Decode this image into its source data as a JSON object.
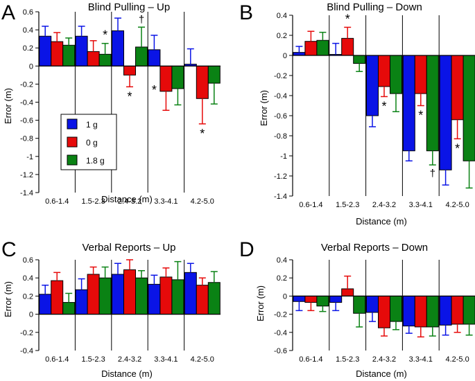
{
  "figure": {
    "colors": {
      "1 g": "#0a14e6",
      "0 g": "#e60a0a",
      "1.8 g": "#0a8214"
    },
    "legend": [
      {
        "name": "1 g",
        "color": "#0a14e6"
      },
      {
        "name": "0 g",
        "color": "#e60a0a"
      },
      {
        "name": "1.8 g",
        "color": "#0a8214"
      }
    ]
  },
  "chart_data": [
    {
      "type": "bar",
      "panel_letter": "A",
      "title": "Blind Pulling – Up",
      "xlabel": "Distance (m)",
      "ylabel": "Error (m)",
      "categories": [
        "0.6-1.4",
        "1.5-2.3",
        "2.4-3.2",
        "3.3-4.1",
        "4.2-5.0"
      ],
      "ylim": [
        -1.4,
        0.6
      ],
      "yticks": [
        0.6,
        0.4,
        0.2,
        0,
        -0.2,
        -0.4,
        -0.6,
        -0.8,
        -1,
        -1.2,
        -1.4
      ],
      "ytick_labels": [
        "0.6",
        "0.4",
        "0.2",
        "0",
        "-0.2",
        "-0.4",
        "-0.6",
        "-0.8",
        "-1",
        "-1.2",
        "-1.4"
      ],
      "legend_position": "lower-left",
      "series": [
        {
          "name": "1 g",
          "values": [
            0.33,
            0.33,
            0.39,
            0.18,
            0.02
          ],
          "errors": [
            0.11,
            0.11,
            0.14,
            0.16,
            0.17
          ]
        },
        {
          "name": "0 g",
          "values": [
            0.27,
            0.16,
            -0.1,
            -0.28,
            -0.36
          ],
          "errors": [
            0.1,
            0.12,
            0.13,
            0.21,
            0.28
          ]
        },
        {
          "name": "1.8 g",
          "values": [
            0.23,
            0.13,
            0.21,
            -0.25,
            -0.19
          ],
          "errors": [
            0.08,
            0.12,
            0.22,
            0.18,
            0.23
          ]
        }
      ],
      "annotations": [
        {
          "text": "*",
          "category": 1,
          "series": 2,
          "position": "above"
        },
        {
          "text": "†",
          "category": 2,
          "series": 2,
          "position": "above"
        },
        {
          "text": "*",
          "category": 2,
          "series": 1,
          "position": "below"
        },
        {
          "text": "*",
          "category": 3,
          "series": 0,
          "position": "below"
        },
        {
          "text": "*",
          "category": 4,
          "series": 1,
          "position": "below"
        }
      ]
    },
    {
      "type": "bar",
      "panel_letter": "B",
      "title": "Blind Pulling – Down",
      "xlabel": "Distance (m)",
      "ylabel": "Error (m)",
      "categories": [
        "0.6-1.4",
        "1.5-2.3",
        "2.4-3.2",
        "3.3-4.1",
        "4.2-5.0"
      ],
      "ylim": [
        -1.4,
        0.4
      ],
      "yticks": [
        0.4,
        0.2,
        0,
        -0.2,
        -0.4,
        -0.6,
        -0.8,
        -1,
        -1.2,
        -1.4
      ],
      "ytick_labels": [
        "0.4",
        "0.2",
        "0",
        "-0.2",
        "-0.4",
        "-0.6",
        "-0.8",
        "-1",
        "-1.2",
        "-1.4"
      ],
      "series": [
        {
          "name": "1 g",
          "values": [
            0.03,
            0.01,
            -0.6,
            -0.95,
            -1.14
          ],
          "errors": [
            0.06,
            0.11,
            0.11,
            0.1,
            0.15
          ]
        },
        {
          "name": "0 g",
          "values": [
            0.14,
            0.17,
            -0.31,
            -0.38,
            -0.64
          ],
          "errors": [
            0.1,
            0.11,
            0.1,
            0.12,
            0.19
          ]
        },
        {
          "name": "1.8 g",
          "values": [
            0.15,
            -0.08,
            -0.38,
            -0.95,
            -1.05
          ],
          "errors": [
            0.08,
            0.08,
            0.18,
            0.14,
            0.27
          ]
        }
      ],
      "annotations": [
        {
          "text": "*",
          "category": 1,
          "series": 1,
          "position": "above"
        },
        {
          "text": "*",
          "category": 2,
          "series": 1,
          "position": "below"
        },
        {
          "text": "*",
          "category": 3,
          "series": 1,
          "position": "below"
        },
        {
          "text": "†",
          "category": 3,
          "series": 2,
          "position": "below"
        },
        {
          "text": "*",
          "category": 4,
          "series": 1,
          "position": "below"
        }
      ]
    },
    {
      "type": "bar",
      "panel_letter": "C",
      "title": "Verbal Reports – Up",
      "xlabel": "Distance (m)",
      "ylabel": "Error (m)",
      "categories": [
        "0.6-1.4",
        "1.5-2.3",
        "2.4-3.2",
        "3.3-4.1",
        "4.2-5.0"
      ],
      "ylim": [
        -0.4,
        0.6
      ],
      "yticks": [
        0.6,
        0.4,
        0.2,
        0,
        -0.2,
        -0.4
      ],
      "ytick_labels": [
        "0.6",
        "0.4",
        "0.2",
        "0",
        "-0.2",
        "-0.4"
      ],
      "series": [
        {
          "name": "1 g",
          "values": [
            0.22,
            0.27,
            0.44,
            0.33,
            0.46
          ],
          "errors": [
            0.1,
            0.12,
            0.12,
            0.1,
            0.1
          ]
        },
        {
          "name": "0 g",
          "values": [
            0.37,
            0.44,
            0.49,
            0.41,
            0.32
          ],
          "errors": [
            0.09,
            0.08,
            0.11,
            0.1,
            0.08
          ]
        },
        {
          "name": "1.8 g",
          "values": [
            0.13,
            0.4,
            0.4,
            0.38,
            0.35
          ],
          "errors": [
            0.1,
            0.12,
            0.08,
            0.2,
            0.12
          ]
        }
      ],
      "annotations": []
    },
    {
      "type": "bar",
      "panel_letter": "D",
      "title": "Verbal Reports – Down",
      "xlabel": "Distance (m)",
      "ylabel": "Error (m)",
      "categories": [
        "0.6-1.4",
        "1.5-2.3",
        "2.4-3.2",
        "3.3-4.1",
        "4.2-5.0"
      ],
      "ylim": [
        -0.6,
        0.4
      ],
      "yticks": [
        0.4,
        0.2,
        0,
        -0.2,
        -0.4,
        -0.6
      ],
      "ytick_labels": [
        "0.4",
        "0.2",
        "0",
        "-0.2",
        "-0.4",
        "-0.6"
      ],
      "series": [
        {
          "name": "1 g",
          "values": [
            -0.06,
            -0.07,
            -0.18,
            -0.33,
            -0.32
          ],
          "errors": [
            0.1,
            0.09,
            0.1,
            0.08,
            0.11
          ]
        },
        {
          "name": "0 g",
          "values": [
            -0.07,
            0.08,
            -0.35,
            -0.34,
            -0.31
          ],
          "errors": [
            0.09,
            0.14,
            0.09,
            0.11,
            0.09
          ]
        },
        {
          "name": "1.8 g",
          "values": [
            -0.11,
            -0.19,
            -0.28,
            -0.34,
            -0.31
          ],
          "errors": [
            0.06,
            0.15,
            0.09,
            0.1,
            0.12
          ]
        }
      ],
      "annotations": []
    }
  ]
}
